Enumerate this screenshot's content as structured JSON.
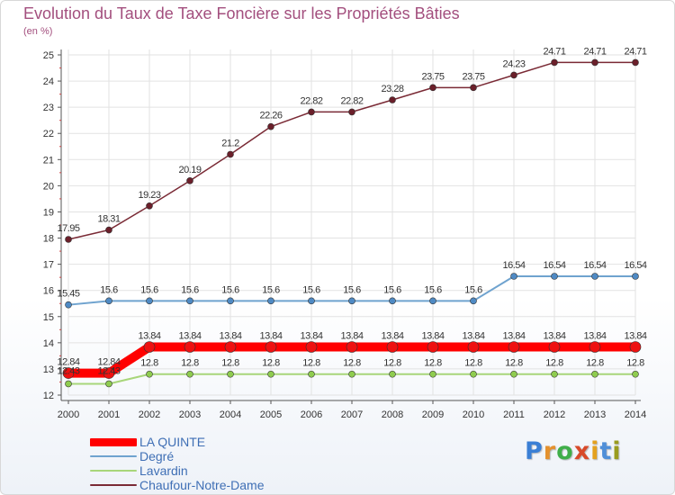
{
  "title": "Evolution du Taux de Taxe Foncière sur les Propriétés Bâties",
  "unit_label": "(en %)",
  "brand": {
    "letters": [
      "P",
      "r",
      "o",
      "x",
      "i",
      "t",
      "i"
    ],
    "colors": [
      "#3a7fd5",
      "#e4912e",
      "#3fae49",
      "#d84a2a",
      "#e4a11e",
      "#4f8fd8",
      "#9a9c1e"
    ]
  },
  "chart_data": {
    "type": "line",
    "title": "Evolution du Taux de Taxe Foncière sur les Propriétés Bâties",
    "ylabel": "(en %)",
    "xlabel": "",
    "x": [
      2000,
      2001,
      2002,
      2003,
      2004,
      2005,
      2006,
      2007,
      2008,
      2009,
      2010,
      2011,
      2012,
      2013,
      2014
    ],
    "ylim": [
      12,
      25
    ],
    "yticks": [
      12,
      13,
      14,
      15,
      16,
      17,
      18,
      19,
      20,
      21,
      22,
      23,
      24,
      25
    ],
    "legend_position": "bottom-left",
    "series": [
      {
        "name": "LA QUINTE",
        "color": "#ff0000",
        "marker": "#ee1111",
        "values": [
          12.84,
          12.84,
          13.84,
          13.84,
          13.84,
          13.84,
          13.84,
          13.84,
          13.84,
          13.84,
          13.84,
          13.84,
          13.84,
          13.84,
          13.84
        ],
        "labels": [
          "12.84",
          "12.84",
          "13.84",
          "13.84",
          "13.84",
          "13.84",
          "13.84",
          "13.84",
          "13.84",
          "13.84",
          "13.84",
          "13.84",
          "13.84",
          "13.84",
          "13.84"
        ]
      },
      {
        "name": "Degré",
        "color": "#6fa3cf",
        "marker": "#4f8ac4",
        "values": [
          15.45,
          15.6,
          15.6,
          15.6,
          15.6,
          15.6,
          15.6,
          15.6,
          15.6,
          15.6,
          15.6,
          16.54,
          16.54,
          16.54,
          16.54
        ],
        "labels": [
          "15.45",
          "15.6",
          "15.6",
          "15.6",
          "15.6",
          "15.6",
          "15.6",
          "15.6",
          "15.6",
          "15.6",
          "15.6",
          "16.54",
          "16.54",
          "16.54",
          "16.54"
        ]
      },
      {
        "name": "Lavardin",
        "color": "#a8d67a",
        "marker": "#8fcc4f",
        "values": [
          12.43,
          12.43,
          12.8,
          12.8,
          12.8,
          12.8,
          12.8,
          12.8,
          12.8,
          12.8,
          12.8,
          12.8,
          12.8,
          12.8,
          12.8
        ],
        "labels": [
          "12.43",
          "12.43",
          "12.8",
          "12.8",
          "12.8",
          "12.8",
          "12.8",
          "12.8",
          "12.8",
          "12.8",
          "12.8",
          "12.8",
          "12.8",
          "12.8",
          "12.8"
        ]
      },
      {
        "name": "Chaufour-Notre-Dame",
        "color": "#7a2a35",
        "marker": "#6b1f2a",
        "values": [
          17.95,
          18.31,
          19.23,
          20.19,
          21.2,
          22.26,
          22.82,
          22.82,
          23.28,
          23.75,
          23.75,
          24.23,
          24.71,
          24.71,
          24.71
        ],
        "labels": [
          "17.95",
          "18.31",
          "19.23",
          "20.19",
          "21.2",
          "22.26",
          "22.82",
          "22.82",
          "23.28",
          "23.75",
          "23.75",
          "24.23",
          "24.71",
          "24.71",
          "24.71"
        ]
      }
    ]
  }
}
